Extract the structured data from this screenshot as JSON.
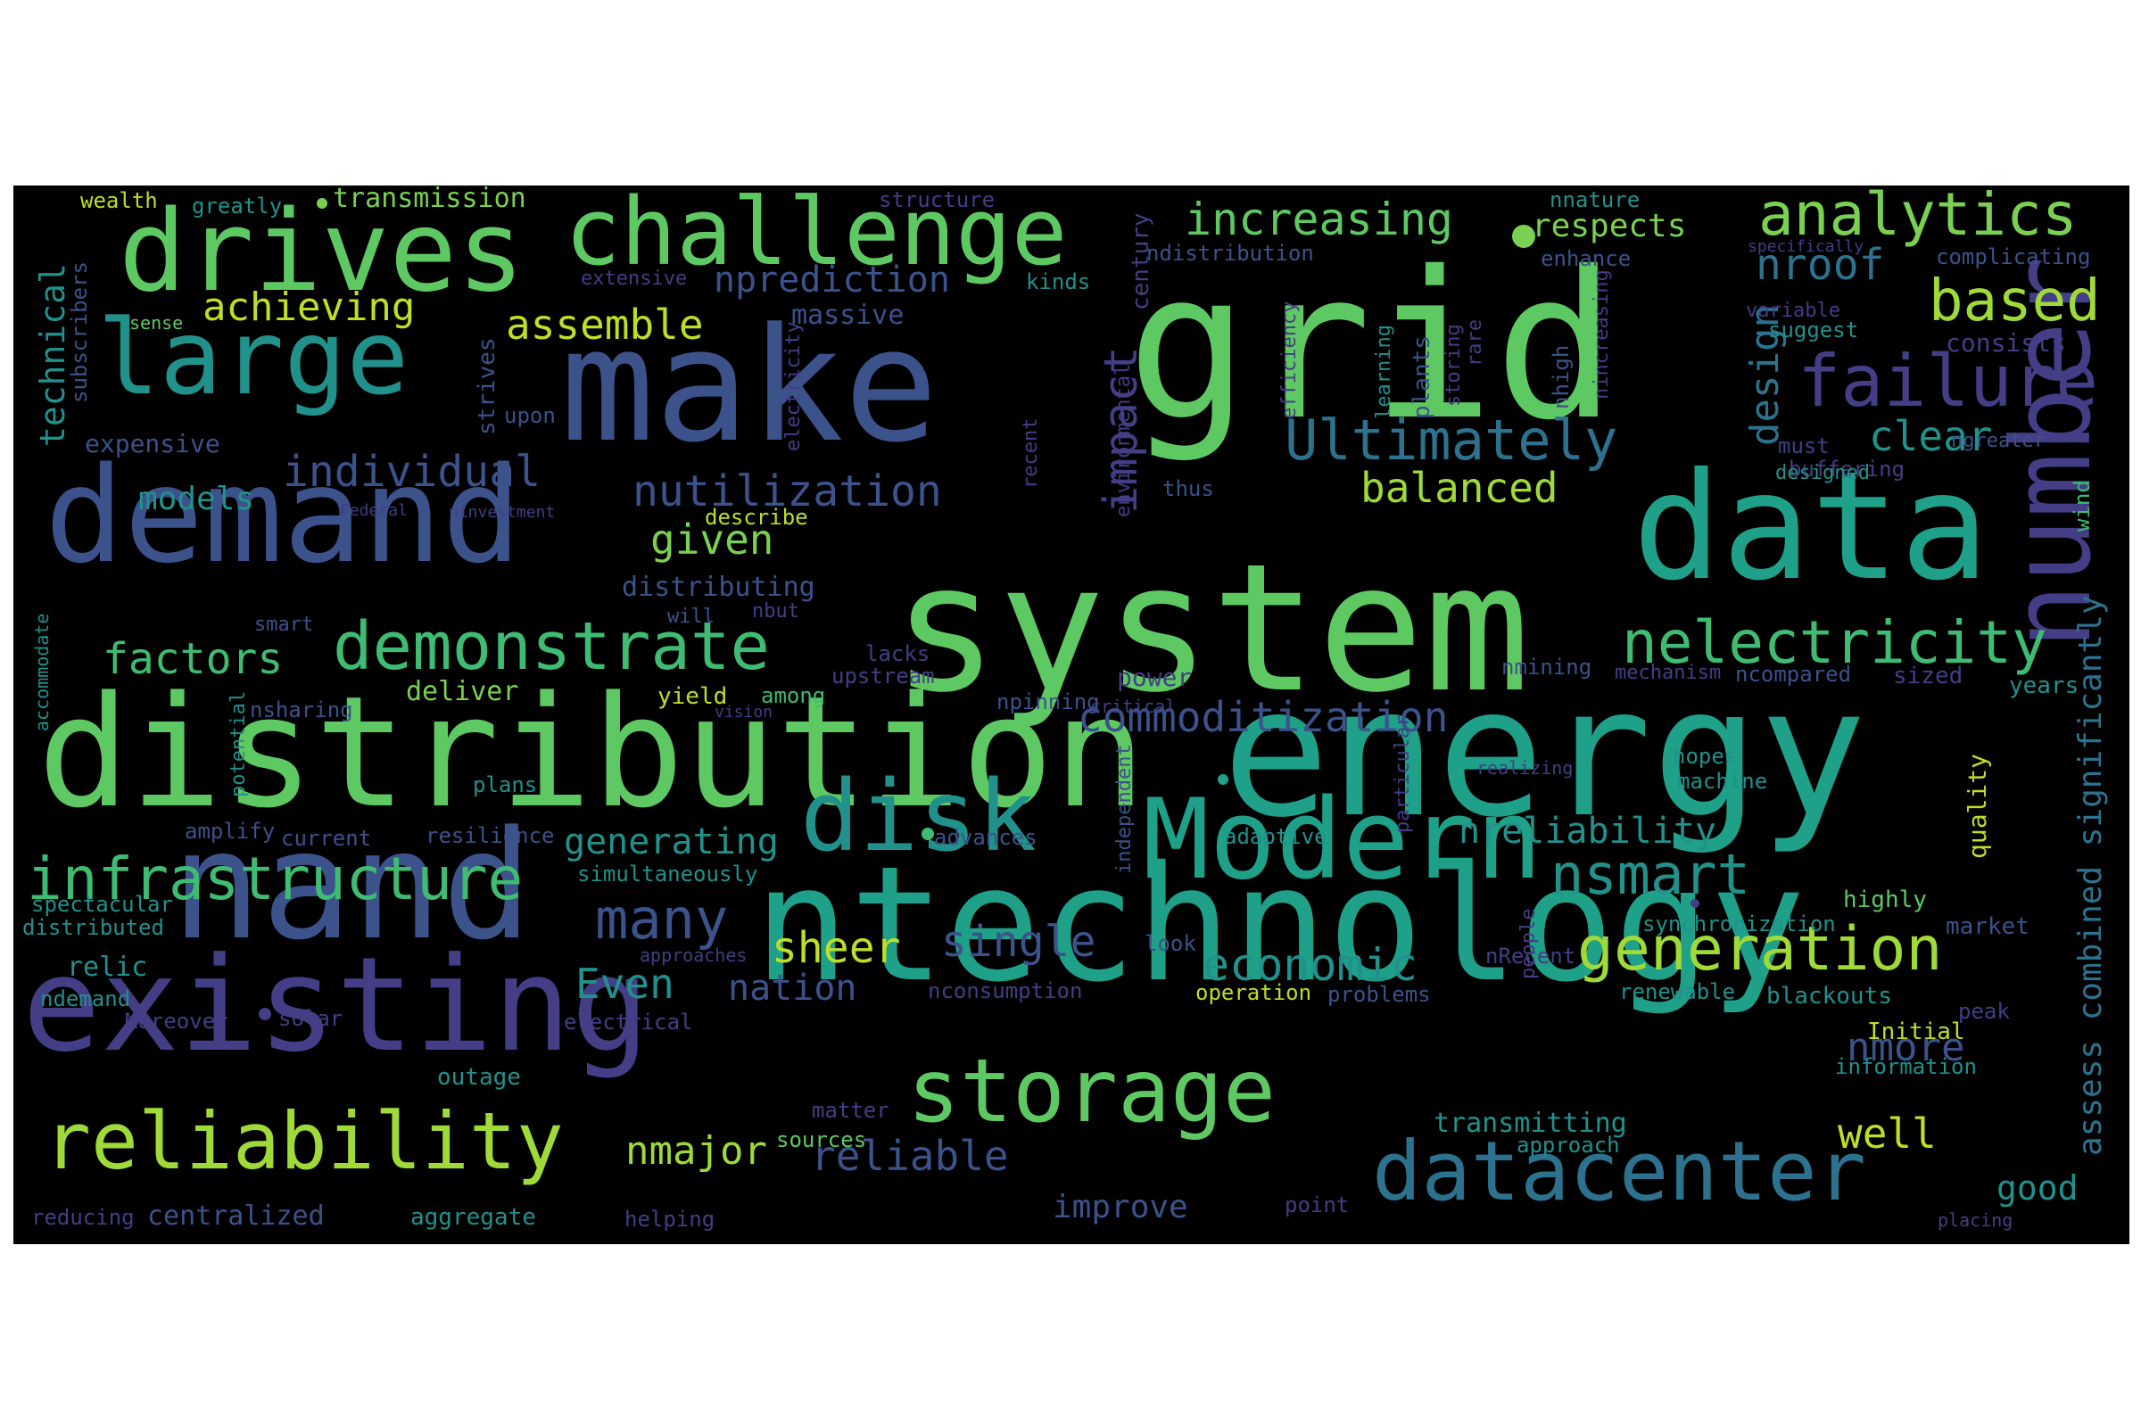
{
  "palette": {
    "green_bright": "#7ad151",
    "green": "#5ec962",
    "green_mid": "#3fbc73",
    "teal_green": "#28ae80",
    "teal": "#1fa088",
    "teal_dark": "#21918c",
    "blue_teal": "#26828e",
    "blue": "#2c728e",
    "blue_mid": "#33638d",
    "blue_purple": "#3b528b",
    "purple": "#433e85",
    "purple_deep": "#482878",
    "purple_dark": "#481a6c",
    "yellow_green": "#a0da39",
    "yellow": "#bddf26",
    "yellow_bright": "#d0e11c"
  },
  "words": [
    {
      "text": "system",
      "color": "#5ec962"
    },
    {
      "text": "grid",
      "color": "#5ec962"
    },
    {
      "text": "energy",
      "color": "#1fa088"
    },
    {
      "text": "distribution",
      "color": "#5ec962"
    },
    {
      "text": "make",
      "color": "#3b528b"
    },
    {
      "text": "data",
      "color": "#1fa088"
    },
    {
      "text": "ntechnology",
      "color": "#1fa088"
    },
    {
      "text": "demand",
      "color": "#3b528b"
    },
    {
      "text": "nand",
      "color": "#3b528b"
    },
    {
      "text": "existing",
      "color": "#433e85"
    },
    {
      "text": "Modern",
      "color": "#1fa088"
    },
    {
      "text": "number",
      "color": "#433e85"
    },
    {
      "text": "drives",
      "color": "#5ec962"
    },
    {
      "text": "large",
      "color": "#21918c"
    },
    {
      "text": "challenge",
      "color": "#5ec962"
    },
    {
      "text": "disk",
      "color": "#21918c"
    },
    {
      "text": "storage",
      "color": "#5ec962"
    },
    {
      "text": "reliability",
      "color": "#a0da39"
    },
    {
      "text": "datacenter",
      "color": "#2c728e"
    },
    {
      "text": "analytics",
      "color": "#7ad151"
    },
    {
      "text": "failure",
      "color": "#433e85"
    },
    {
      "text": "infrastructure",
      "color": "#3fbc73"
    },
    {
      "text": "demonstrate",
      "color": "#3fbc73"
    },
    {
      "text": "generation",
      "color": "#a0da39"
    },
    {
      "text": "nelectricity",
      "color": "#3fbc73"
    },
    {
      "text": "Ultimately",
      "color": "#2c728e"
    },
    {
      "text": "nsmart",
      "color": "#21918c"
    },
    {
      "text": "impact",
      "color": "#433e85"
    },
    {
      "text": "based",
      "color": "#a0da39"
    },
    {
      "text": "increasing",
      "color": "#5ec962"
    },
    {
      "text": "commoditization",
      "color": "#3b528b"
    },
    {
      "text": "many",
      "color": "#3b528b"
    },
    {
      "text": "nutilization",
      "color": "#3b528b"
    },
    {
      "text": "economic",
      "color": "#21918c"
    },
    {
      "text": "assess combined significantly",
      "color": "#2c728e"
    },
    {
      "text": "nroof",
      "color": "#2c728e"
    },
    {
      "text": "design",
      "color": "#2c728e"
    },
    {
      "text": "individual",
      "color": "#3b528b"
    },
    {
      "text": "single",
      "color": "#3b528b"
    },
    {
      "text": "reliable",
      "color": "#3b528b"
    },
    {
      "text": "well",
      "color": "#bddf26"
    },
    {
      "text": "sheer",
      "color": "#bddf26"
    },
    {
      "text": "nprediction",
      "color": "#3b528b"
    },
    {
      "text": "achieving",
      "color": "#bddf26"
    },
    {
      "text": "assemble",
      "color": "#bddf26"
    },
    {
      "text": "factors",
      "color": "#3fbc73"
    },
    {
      "text": "balanced",
      "color": "#a0da39"
    },
    {
      "text": "clear",
      "color": "#21918c"
    },
    {
      "text": "given",
      "color": "#7ad151"
    },
    {
      "text": "nreliability",
      "color": "#21918c"
    },
    {
      "text": "generating",
      "color": "#21918c"
    },
    {
      "text": "Even",
      "color": "#21918c"
    },
    {
      "text": "nation",
      "color": "#3b528b"
    },
    {
      "text": "nmajor",
      "color": "#a0da39"
    },
    {
      "text": "nmore",
      "color": "#3b528b"
    },
    {
      "text": "respects",
      "color": "#7ad151"
    },
    {
      "text": "technical",
      "color": "#21918c"
    },
    {
      "text": "models",
      "color": "#21918c"
    },
    {
      "text": "good",
      "color": "#21918c"
    },
    {
      "text": "improve",
      "color": "#3b528b"
    },
    {
      "text": "transmission",
      "color": "#7ad151"
    },
    {
      "text": "distributing",
      "color": "#3b528b"
    },
    {
      "text": "transmitting",
      "color": "#21918c"
    },
    {
      "text": "massive",
      "color": "#3b528b"
    },
    {
      "text": "century",
      "color": "#433e85"
    },
    {
      "text": "expensive",
      "color": "#3b528b"
    },
    {
      "text": "centralized",
      "color": "#3b528b"
    },
    {
      "text": "aggregate",
      "color": "#21918c"
    },
    {
      "text": "deliver",
      "color": "#7ad151"
    },
    {
      "text": "yield",
      "color": "#bddf26"
    },
    {
      "text": "power",
      "color": "#433e85"
    },
    {
      "text": "upstream",
      "color": "#433e85"
    },
    {
      "text": "lacks",
      "color": "#433e85"
    },
    {
      "text": "npinning",
      "color": "#3b528b"
    },
    {
      "text": "simultaneously",
      "color": "#21918c"
    },
    {
      "text": "adaptive",
      "color": "#21918c"
    },
    {
      "text": "advances",
      "color": "#3b528b"
    },
    {
      "text": "current",
      "color": "#3b528b"
    },
    {
      "text": "resilience",
      "color": "#3b528b"
    },
    {
      "text": "plans",
      "color": "#21918c"
    },
    {
      "text": "amplify",
      "color": "#3b528b"
    },
    {
      "text": "spectacular",
      "color": "#21918c"
    },
    {
      "text": "distributed",
      "color": "#21918c"
    },
    {
      "text": "relic",
      "color": "#21918c"
    },
    {
      "text": "ndemand",
      "color": "#21918c"
    },
    {
      "text": "Moreover",
      "color": "#433e85"
    },
    {
      "text": "solar",
      "color": "#433e85"
    },
    {
      "text": "electrical",
      "color": "#433e85"
    },
    {
      "text": "outage",
      "color": "#21918c"
    },
    {
      "text": "matter",
      "color": "#433e85"
    },
    {
      "text": "sources",
      "color": "#5ec962"
    },
    {
      "text": "helping",
      "color": "#433e85"
    },
    {
      "text": "reducing",
      "color": "#433e85"
    },
    {
      "text": "point",
      "color": "#433e85"
    },
    {
      "text": "approach",
      "color": "#21918c"
    },
    {
      "text": "operation",
      "color": "#bddf26"
    },
    {
      "text": "problems",
      "color": "#3b528b"
    },
    {
      "text": "nconsumption",
      "color": "#433e85"
    },
    {
      "text": "approaches",
      "color": "#433e85"
    },
    {
      "text": "independent",
      "color": "#3b528b"
    },
    {
      "text": "look",
      "color": "#3b528b"
    },
    {
      "text": "nRecent",
      "color": "#433e85"
    },
    {
      "text": "people",
      "color": "#433e85"
    },
    {
      "text": "renewable",
      "color": "#21918c"
    },
    {
      "text": "blackouts",
      "color": "#21918c"
    },
    {
      "text": "peak",
      "color": "#433e85"
    },
    {
      "text": "Initial",
      "color": "#bddf26"
    },
    {
      "text": "information",
      "color": "#21918c"
    },
    {
      "text": "placing",
      "color": "#433e85"
    },
    {
      "text": "market",
      "color": "#3b528b"
    },
    {
      "text": "synchronization",
      "color": "#21918c"
    },
    {
      "text": "highly",
      "color": "#5ec962"
    },
    {
      "text": "hopes",
      "color": "#21918c"
    },
    {
      "text": "machine",
      "color": "#21918c"
    },
    {
      "text": "realizing",
      "color": "#433e85"
    },
    {
      "text": "particular",
      "color": "#433e85"
    },
    {
      "text": "quality",
      "color": "#bddf26"
    },
    {
      "text": "years",
      "color": "#21918c"
    },
    {
      "text": "sized",
      "color": "#433e85"
    },
    {
      "text": "ncompared",
      "color": "#3b528b"
    },
    {
      "text": "mechanism",
      "color": "#433e85"
    },
    {
      "text": "nmining",
      "color": "#3b528b"
    },
    {
      "text": "critical",
      "color": "#433e85"
    },
    {
      "text": "wind",
      "color": "#3fbc73"
    },
    {
      "text": "buffering",
      "color": "#433e85"
    },
    {
      "text": "designed",
      "color": "#21918c"
    },
    {
      "text": "must",
      "color": "#433e85"
    },
    {
      "text": "ngreater",
      "color": "#3b528b"
    },
    {
      "text": "consists",
      "color": "#433e85"
    },
    {
      "text": "suggest",
      "color": "#21918c"
    },
    {
      "text": "variable",
      "color": "#433e85"
    },
    {
      "text": "complicating",
      "color": "#3b528b"
    },
    {
      "text": "specifically",
      "color": "#433e85"
    },
    {
      "text": "enhance",
      "color": "#3b528b"
    },
    {
      "text": "nnature",
      "color": "#21918c"
    },
    {
      "text": "nhigh",
      "color": "#3b528b"
    },
    {
      "text": "nincreasing",
      "color": "#433e85"
    },
    {
      "text": "rare",
      "color": "#433e85"
    },
    {
      "text": "storing",
      "color": "#433e85"
    },
    {
      "text": "plants",
      "color": "#3b528b"
    },
    {
      "text": "learning",
      "color": "#21918c"
    },
    {
      "text": "efficiency",
      "color": "#433e85"
    },
    {
      "text": "ndistribution",
      "color": "#3b528b"
    },
    {
      "text": "thus",
      "color": "#3b528b"
    },
    {
      "text": "recent",
      "color": "#433e85"
    },
    {
      "text": "environmental",
      "color": "#433e85"
    },
    {
      "text": "kinds",
      "color": "#21918c"
    },
    {
      "text": "electricity",
      "color": "#433e85"
    },
    {
      "text": "structure",
      "color": "#433e85"
    },
    {
      "text": "extensive",
      "color": "#433e85"
    },
    {
      "text": "upon",
      "color": "#3b528b"
    },
    {
      "text": "strives",
      "color": "#3b528b"
    },
    {
      "text": "sense",
      "color": "#5ec962"
    },
    {
      "text": "subscribers",
      "color": "#3b528b"
    },
    {
      "text": "wealth",
      "color": "#bddf26"
    },
    {
      "text": "greatly",
      "color": "#21918c"
    },
    {
      "text": "Federal",
      "color": "#433e85"
    },
    {
      "text": "ninvestment",
      "color": "#433e85"
    },
    {
      "text": "describe",
      "color": "#bddf26"
    },
    {
      "text": "nbut",
      "color": "#433e85"
    },
    {
      "text": "will",
      "color": "#3b528b"
    },
    {
      "text": "smart",
      "color": "#3b528b"
    },
    {
      "text": "accommodate",
      "color": "#21918c"
    },
    {
      "text": "nsharing",
      "color": "#3b528b"
    },
    {
      "text": "among",
      "color": "#3fbc73"
    },
    {
      "text": "vision",
      "color": "#433e85"
    },
    {
      "text": "potential",
      "color": "#21918c"
    }
  ]
}
